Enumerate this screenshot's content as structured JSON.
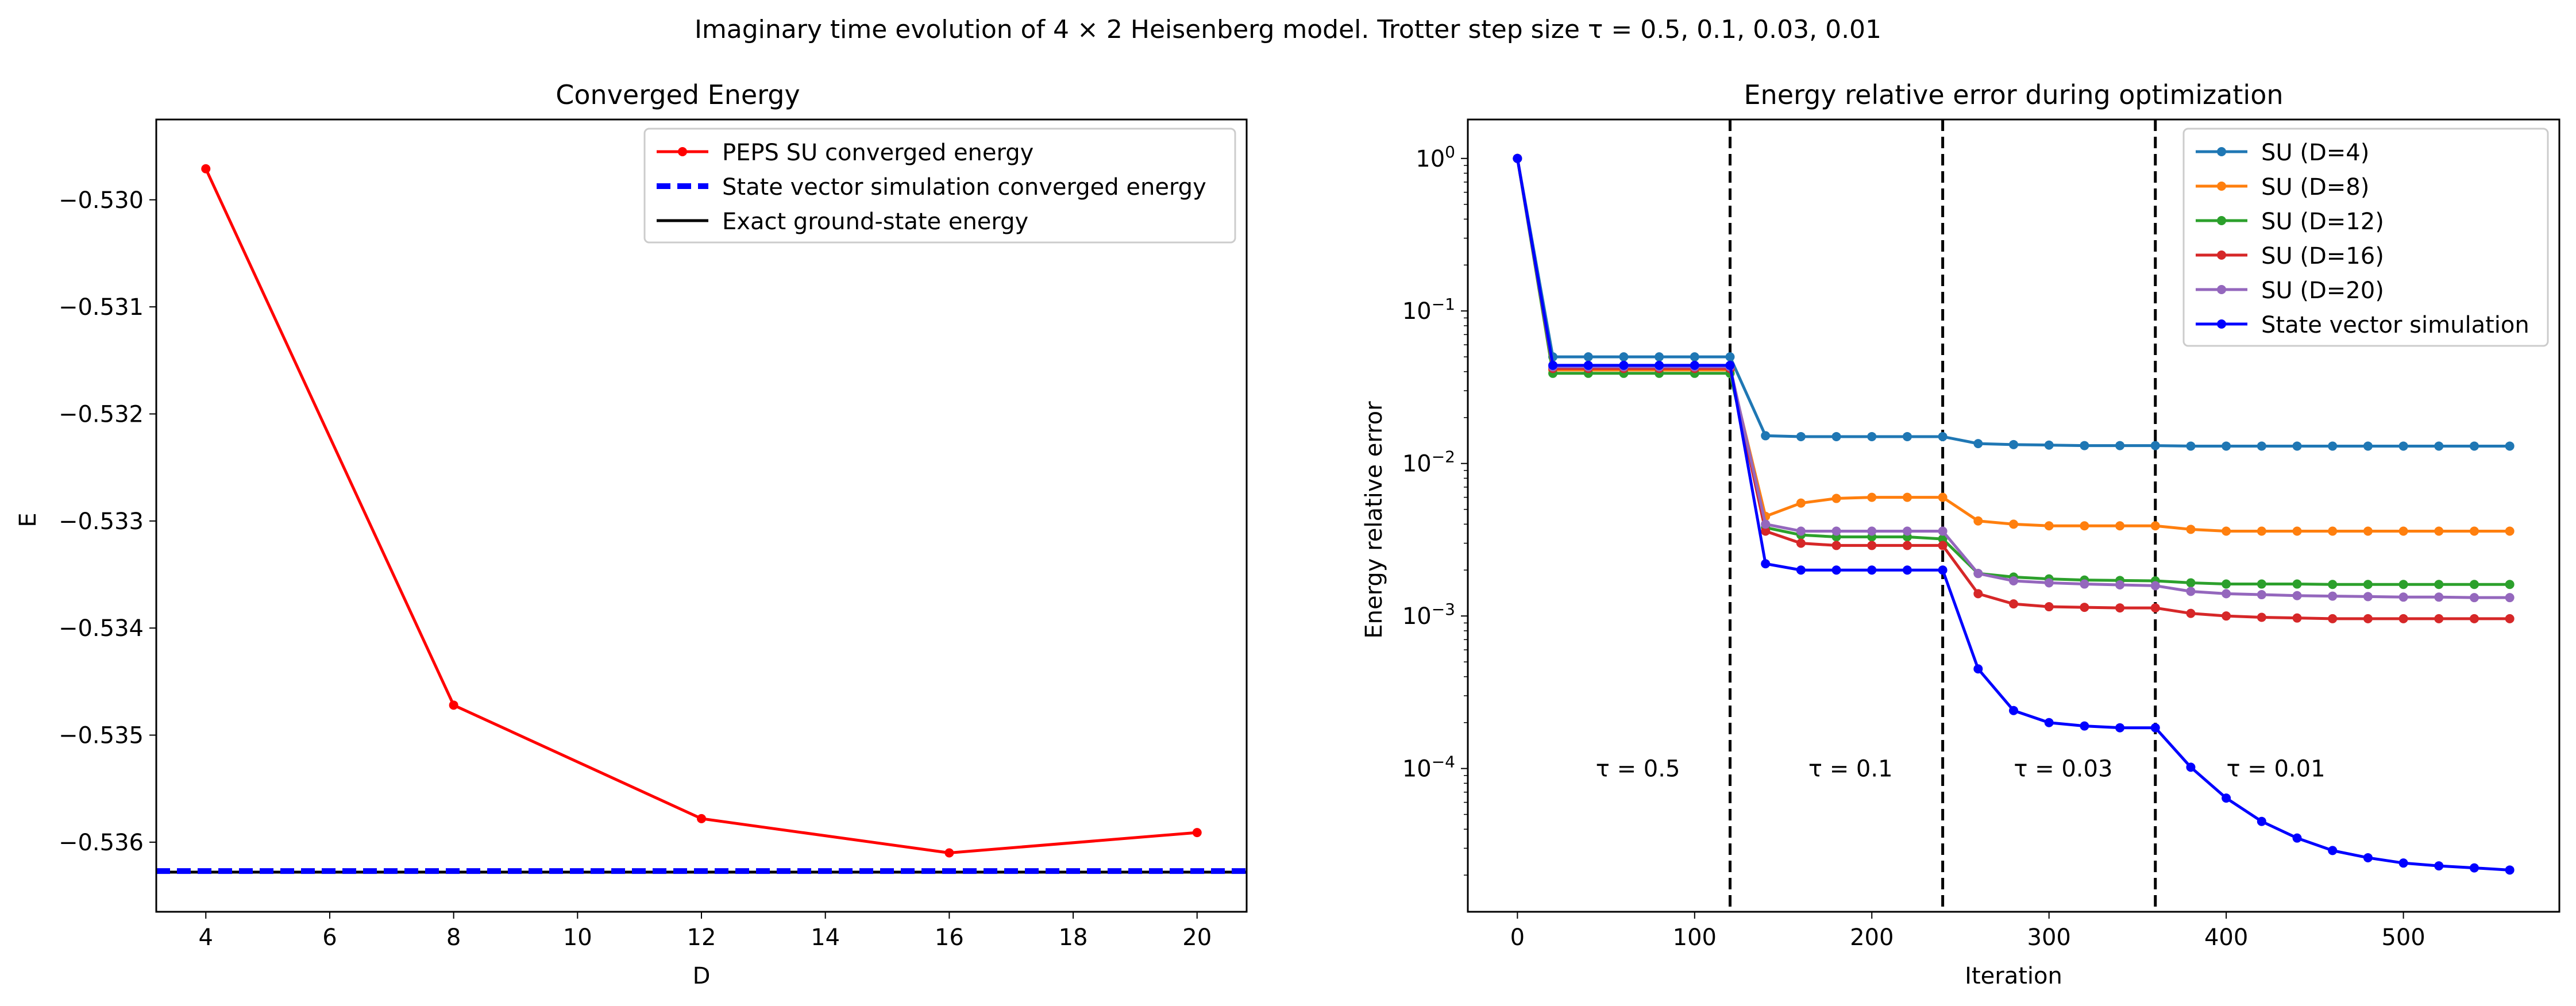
{
  "figure": {
    "suptitle": "Imaginary time evolution of 4 × 2 Heisenberg model. Trotter step size τ = 0.5, 0.1, 0.03, 0.01"
  },
  "chart_data": [
    {
      "type": "line",
      "title": "Converged Energy",
      "xlabel": "D",
      "ylabel": "E",
      "xlim": [
        3.2,
        20.8
      ],
      "ylim": [
        -0.53665,
        -0.52925
      ],
      "xticks": [
        4,
        6,
        8,
        10,
        12,
        14,
        16,
        18,
        20
      ],
      "yticks": [
        -0.536,
        -0.535,
        -0.534,
        -0.533,
        -0.532,
        -0.531,
        -0.53
      ],
      "ytick_labels": [
        "−0.536",
        "−0.535",
        "−0.534",
        "−0.533",
        "−0.532",
        "−0.531",
        "−0.530"
      ],
      "grid": false,
      "legend_position": "top-right",
      "series": [
        {
          "name": "PEPS SU converged energy",
          "color": "#ff0000",
          "style": "solid-marker",
          "x": [
            4,
            8,
            12,
            16,
            20
          ],
          "y": [
            -0.52971,
            -0.53472,
            -0.53578,
            -0.5361,
            -0.53591
          ]
        },
        {
          "name": "State vector simulation converged energy",
          "color": "#0000ff",
          "style": "dashed-hline",
          "y": -0.53627
        },
        {
          "name": "Exact ground-state energy",
          "color": "#000000",
          "style": "solid-hline",
          "y": -0.53628
        }
      ]
    },
    {
      "type": "line",
      "title": "Energy relative error during optimization",
      "xlabel": "Iteration",
      "ylabel": "Energy relative error",
      "yscale": "log",
      "xlim": [
        -28,
        588
      ],
      "ylim": [
        1.15e-05,
        1.8
      ],
      "xticks": [
        0,
        100,
        200,
        300,
        400,
        500
      ],
      "yticks": [
        0.0001,
        0.001,
        0.01,
        0.1,
        1
      ],
      "ytick_labels": [
        "10^-4",
        "10^-3",
        "10^-2",
        "10^-1",
        "10^0"
      ],
      "grid": false,
      "legend_position": "top-right",
      "x": [
        0,
        20,
        40,
        60,
        80,
        100,
        120,
        140,
        160,
        180,
        200,
        220,
        240,
        260,
        280,
        300,
        320,
        340,
        360,
        380,
        400,
        420,
        440,
        460,
        480,
        500,
        520,
        540,
        560
      ],
      "series": [
        {
          "name": "SU (D=4)",
          "color": "#1f77b4",
          "values": [
            1.0,
            0.05,
            0.05,
            0.05,
            0.05,
            0.05,
            0.05,
            0.0152,
            0.015,
            0.015,
            0.015,
            0.015,
            0.015,
            0.0135,
            0.0133,
            0.0132,
            0.0131,
            0.0131,
            0.0131,
            0.013,
            0.013,
            0.013,
            0.013,
            0.013,
            0.013,
            0.013,
            0.013,
            0.013,
            0.013
          ]
        },
        {
          "name": "SU (D=8)",
          "color": "#ff7f0e",
          "values": [
            1.0,
            0.041,
            0.041,
            0.041,
            0.041,
            0.041,
            0.041,
            0.0045,
            0.0055,
            0.0059,
            0.006,
            0.006,
            0.006,
            0.0042,
            0.004,
            0.0039,
            0.0039,
            0.0039,
            0.0039,
            0.0037,
            0.0036,
            0.0036,
            0.0036,
            0.0036,
            0.0036,
            0.0036,
            0.0036,
            0.0036,
            0.0036
          ]
        },
        {
          "name": "SU (D=12)",
          "color": "#2ca02c",
          "values": [
            1.0,
            0.039,
            0.039,
            0.039,
            0.039,
            0.039,
            0.039,
            0.0038,
            0.0034,
            0.0033,
            0.0033,
            0.0033,
            0.0032,
            0.0019,
            0.0018,
            0.00175,
            0.00172,
            0.00171,
            0.0017,
            0.00165,
            0.00162,
            0.00162,
            0.00162,
            0.00161,
            0.00161,
            0.00161,
            0.00161,
            0.00161,
            0.00161
          ]
        },
        {
          "name": "SU (D=16)",
          "color": "#d62728",
          "values": [
            1.0,
            0.042,
            0.042,
            0.042,
            0.042,
            0.042,
            0.042,
            0.0036,
            0.003,
            0.0029,
            0.0029,
            0.0029,
            0.0029,
            0.0014,
            0.0012,
            0.00115,
            0.00114,
            0.00113,
            0.00113,
            0.00104,
            0.001,
            0.00098,
            0.00097,
            0.00096,
            0.00096,
            0.00096,
            0.00096,
            0.00096,
            0.00096
          ]
        },
        {
          "name": "SU (D=20)",
          "color": "#9467bd",
          "values": [
            1.0,
            0.043,
            0.043,
            0.043,
            0.043,
            0.043,
            0.043,
            0.004,
            0.0036,
            0.0036,
            0.0036,
            0.0036,
            0.0036,
            0.0019,
            0.0017,
            0.00165,
            0.00162,
            0.0016,
            0.00158,
            0.00145,
            0.0014,
            0.00138,
            0.00136,
            0.00135,
            0.00134,
            0.00133,
            0.00133,
            0.00132,
            0.00132
          ]
        },
        {
          "name": "State vector simulation",
          "color": "#0000ff",
          "values": [
            1.0,
            0.044,
            0.044,
            0.044,
            0.044,
            0.044,
            0.044,
            0.0022,
            0.002,
            0.002,
            0.002,
            0.002,
            0.002,
            0.00045,
            0.00024,
            0.0002,
            0.00019,
            0.000185,
            0.000185,
            0.000102,
            6.4e-05,
            4.5e-05,
            3.5e-05,
            2.9e-05,
            2.6e-05,
            2.4e-05,
            2.3e-05,
            2.23e-05,
            2.16e-05
          ]
        }
      ],
      "vlines": [
        120,
        240,
        360
      ],
      "annotations": [
        {
          "text": "τ = 0.5",
          "x": 68,
          "y": 0.0001
        },
        {
          "text": "τ = 0.1",
          "x": 188,
          "y": 0.0001
        },
        {
          "text": "τ = 0.03",
          "x": 308,
          "y": 0.0001
        },
        {
          "text": "τ = 0.01",
          "x": 428,
          "y": 0.0001
        }
      ]
    }
  ]
}
